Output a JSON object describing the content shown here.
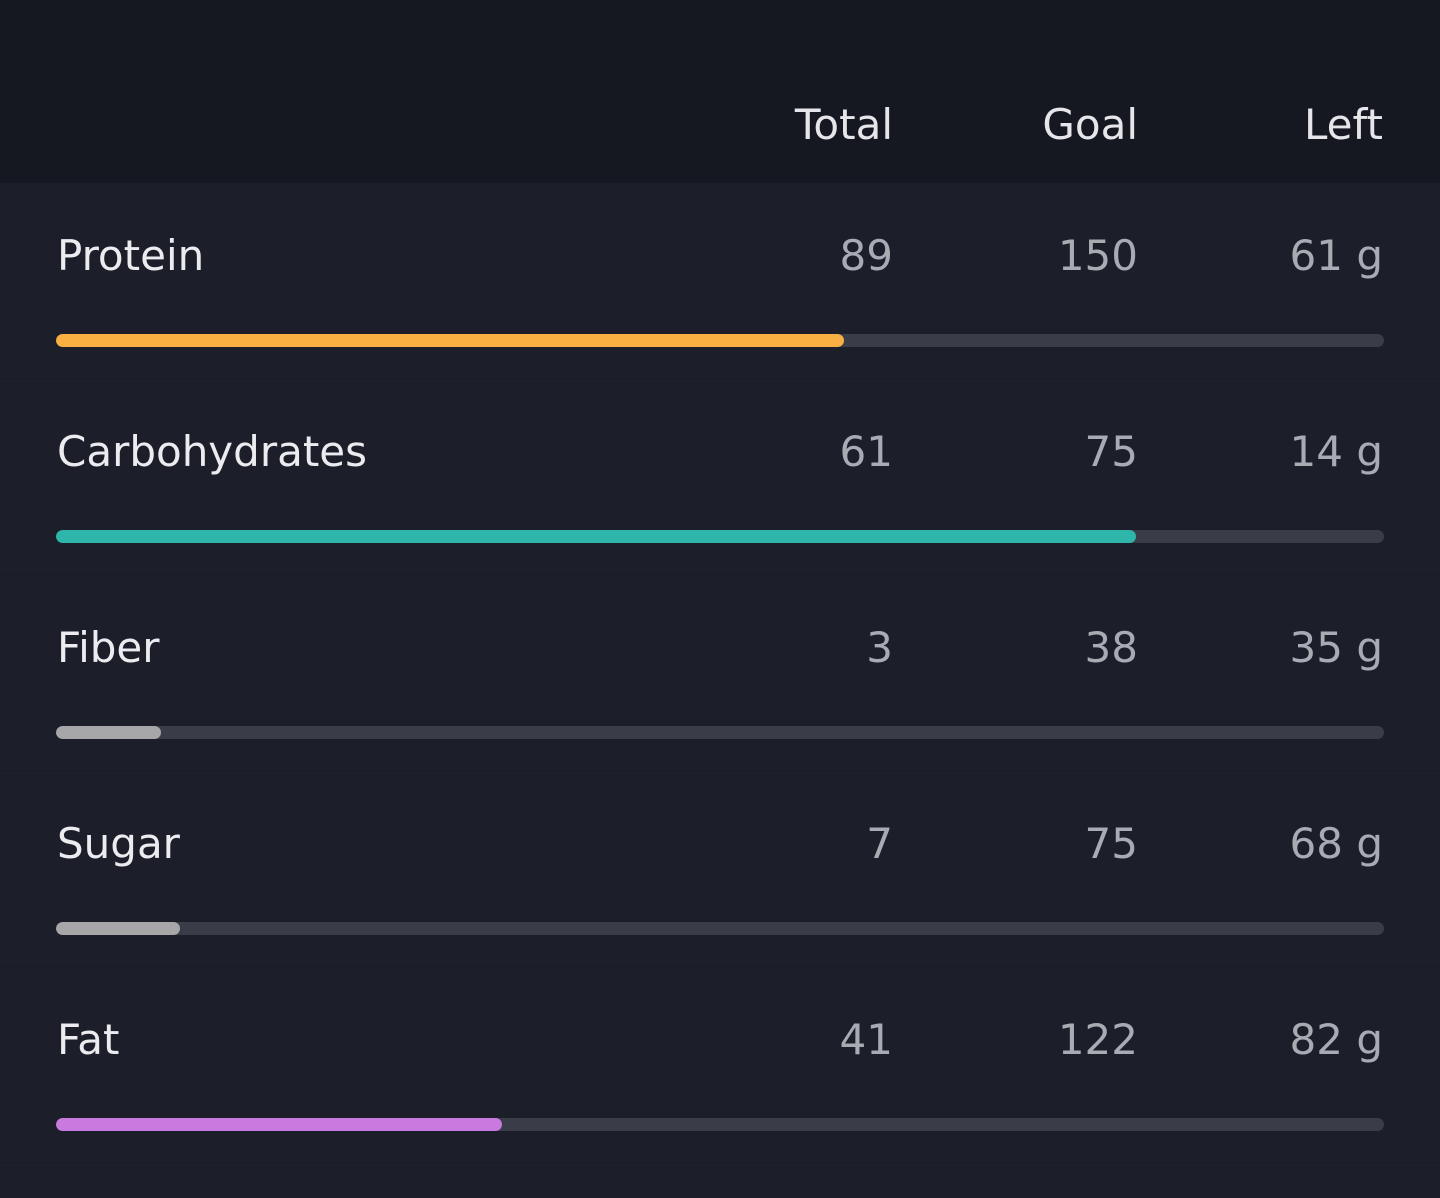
{
  "header": {
    "columns": [
      "Total",
      "Goal",
      "Left"
    ]
  },
  "table": {
    "rows": [
      {
        "name": "Protein",
        "total": 89,
        "goal": 150,
        "left": "61 g",
        "color": "#f8b043"
      },
      {
        "name": "Carbohydrates",
        "total": 61,
        "goal": 75,
        "left": "14 g",
        "color": "#2db6a9"
      },
      {
        "name": "Fiber",
        "total": 3,
        "goal": 38,
        "left": "35 g",
        "color": "#a7a7aa"
      },
      {
        "name": "Sugar",
        "total": 7,
        "goal": 75,
        "left": "68 g",
        "color": "#a7a7aa"
      },
      {
        "name": "Fat",
        "total": 41,
        "goal": 122,
        "left": "82 g",
        "color": "#c87ade"
      }
    ]
  }
}
